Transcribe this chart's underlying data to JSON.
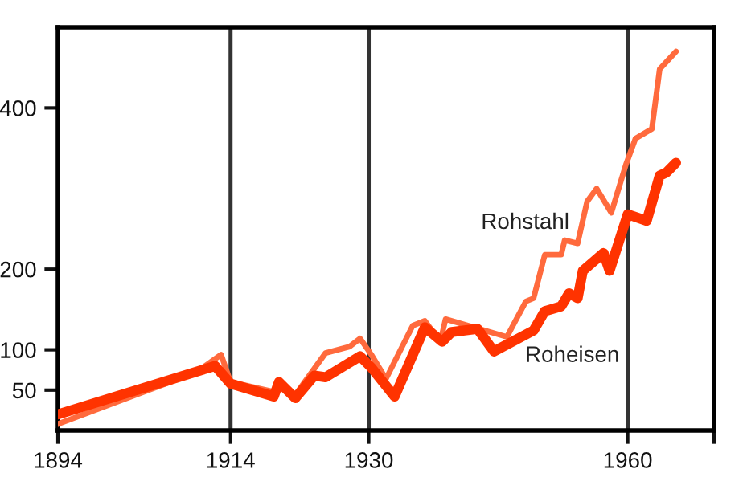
{
  "chart_data": {
    "type": "line",
    "series": [
      {
        "name": "Rohstahl",
        "color": "#ff6a3d",
        "x": [
          1894,
          1910,
          1912.9,
          1914,
          1919,
          1919.6,
          1921.5,
          1925,
          1927.8,
          1929,
          1930.3,
          1932,
          1935.1,
          1936.5,
          1938.3,
          1938.9,
          1946,
          1948.2,
          1949.1,
          1950.4,
          1952.3,
          1952.7,
          1954.2,
          1955.3,
          1956.4,
          1958.1,
          1959.8,
          1960.9,
          1962.8,
          1963.7,
          1965.6
        ],
        "values": [
          8,
          72,
          94,
          60,
          48,
          62,
          44,
          96,
          104,
          114,
          94,
          64,
          130,
          136,
          110,
          138,
          116,
          160,
          164,
          218,
          218,
          236,
          232,
          284,
          300,
          270,
          330,
          362,
          374,
          448,
          470
        ]
      },
      {
        "name": "Roheisen",
        "color": "#ff3300",
        "x": [
          1894,
          1912.2,
          1914,
          1919,
          1919.6,
          1921.5,
          1923.7,
          1925,
          1929,
          1930.3,
          1933,
          1936.5,
          1938.5,
          1939.6,
          1942.6,
          1944.5,
          1949.1,
          1950.4,
          1952.3,
          1953.2,
          1954.2,
          1954.8,
          1957.2,
          1957.9,
          1960,
          1962.2,
          1963.7,
          1964.5,
          1965.6
        ],
        "values": [
          20,
          80,
          58,
          42,
          60,
          40,
          68,
          66,
          92,
          78,
          42,
          128,
          110,
          122,
          126,
          98,
          124,
          148,
          154,
          170,
          164,
          198,
          220,
          198,
          268,
          260,
          316,
          320,
          332
        ]
      }
    ],
    "xlim": [
      1894,
      1970
    ],
    "xticks": [
      1894,
      1914,
      1930,
      1960,
      {
        "value": 1970,
        "label": null
      }
    ],
    "ylim": [
      0,
      500
    ],
    "yticks": [
      50,
      100,
      200,
      400
    ],
    "ref_lines": [
      {
        "axis": "x",
        "value": 1914,
        "color": "#333333"
      },
      {
        "axis": "x",
        "value": 1930,
        "color": "#333333"
      },
      {
        "axis": "x",
        "value": 1960,
        "color": "#333333"
      }
    ],
    "legend": false,
    "grid": false,
    "marker": "none",
    "line_style": "solid"
  }
}
